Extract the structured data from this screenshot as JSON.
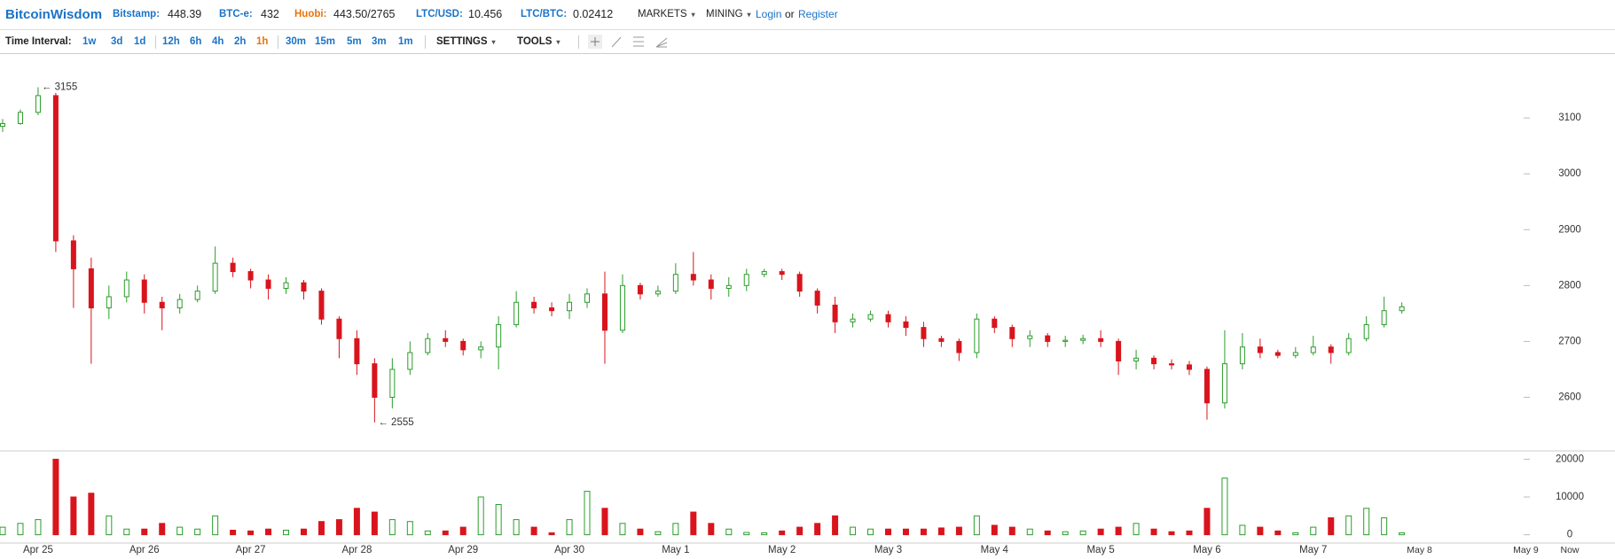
{
  "header": {
    "brand": "BitcoinWisdom",
    "tickers": [
      {
        "name": "Bitstamp:",
        "price": 448.39,
        "color": "#1a73c9"
      },
      {
        "name": "BTC-e:",
        "price": 432,
        "color": "#1a73c9"
      },
      {
        "name": "Huobi:",
        "price": "443.50/2765",
        "color": "#e8730c"
      },
      {
        "name": "LTC/USD:",
        "price": 10.456,
        "color": "#1a73c9"
      },
      {
        "name": "LTC/BTC:",
        "price": 0.02412,
        "color": "#1a73c9"
      }
    ],
    "menus": [
      "MARKETS",
      "MINING"
    ],
    "login": "Login",
    "or": "or",
    "register": "Register"
  },
  "toolbar": {
    "label": "Time Interval:",
    "intervals": [
      {
        "label": "1w",
        "color": "#1a73c9"
      },
      {
        "label": "3d",
        "color": "#1a73c9"
      },
      {
        "label": "1d",
        "color": "#1a73c9"
      },
      {
        "label": "12h",
        "color": "#1a73c9"
      },
      {
        "label": "6h",
        "color": "#1a73c9"
      },
      {
        "label": "4h",
        "color": "#1a73c9"
      },
      {
        "label": "2h",
        "color": "#1a73c9"
      },
      {
        "label": "1h",
        "color": "#e8730c"
      },
      {
        "label": "30m",
        "color": "#1a73c9"
      },
      {
        "label": "15m",
        "color": "#1a73c9"
      },
      {
        "label": "5m",
        "color": "#1a73c9"
      },
      {
        "label": "3m",
        "color": "#1a73c9"
      },
      {
        "label": "1m",
        "color": "#1a73c9"
      }
    ],
    "menus": [
      "SETTINGS",
      "TOOLS"
    ]
  },
  "chart_data": {
    "type": "candlestick",
    "categories": [
      null,
      null,
      "Apr 25",
      null,
      null,
      null,
      null,
      null,
      "Apr 26",
      null,
      null,
      null,
      null,
      null,
      "Apr 27",
      null,
      null,
      null,
      null,
      null,
      "Apr 28",
      null,
      null,
      null,
      null,
      null,
      "Apr 29",
      null,
      null,
      null,
      null,
      null,
      "Apr 30",
      null,
      null,
      null,
      null,
      null,
      "May 1",
      null,
      null,
      null,
      null,
      null,
      "May 2",
      null,
      null,
      null,
      null,
      null,
      "May 3",
      null,
      null,
      null,
      null,
      null,
      "May 4",
      null,
      null,
      null,
      null,
      null,
      "May 5",
      null,
      null,
      null,
      null,
      null,
      "May 6",
      null,
      null,
      null,
      null,
      null,
      "May 7",
      null,
      null,
      null,
      null,
      null
    ],
    "x_extra_labels": [
      "May 8",
      "May 9",
      "Now"
    ],
    "open": [
      3085,
      3090,
      3110,
      3140,
      2880,
      2830,
      2760,
      2780,
      2810,
      2770,
      2760,
      2775,
      2790,
      2840,
      2825,
      2810,
      2795,
      2805,
      2790,
      2740,
      2705,
      2660,
      2600,
      2650,
      2680,
      2705,
      2700,
      2685,
      2690,
      2730,
      2770,
      2760,
      2755,
      2770,
      2785,
      2720,
      2800,
      2785,
      2790,
      2820,
      2810,
      2795,
      2800,
      2820,
      2825,
      2820,
      2790,
      2765,
      2735,
      2740,
      2748,
      2735,
      2725,
      2705,
      2700,
      2680,
      2740,
      2725,
      2705,
      2710,
      2700,
      2702,
      2705,
      2700,
      2665,
      2670,
      2660,
      2658,
      2650,
      2590,
      2660,
      2690,
      2680,
      2675,
      2680,
      2690,
      2680,
      2705,
      2730,
      2755
    ],
    "high": [
      3098,
      3115,
      3155,
      3145,
      2890,
      2850,
      2800,
      2825,
      2820,
      2780,
      2785,
      2800,
      2870,
      2850,
      2830,
      2820,
      2815,
      2810,
      2795,
      2745,
      2720,
      2670,
      2670,
      2700,
      2715,
      2720,
      2705,
      2700,
      2745,
      2790,
      2780,
      2770,
      2785,
      2795,
      2825,
      2820,
      2805,
      2800,
      2840,
      2860,
      2820,
      2815,
      2830,
      2830,
      2830,
      2825,
      2795,
      2780,
      2750,
      2755,
      2755,
      2745,
      2735,
      2710,
      2705,
      2750,
      2745,
      2730,
      2720,
      2715,
      2710,
      2712,
      2720,
      2705,
      2685,
      2675,
      2668,
      2665,
      2655,
      2720,
      2715,
      2705,
      2685,
      2690,
      2710,
      2695,
      2715,
      2745,
      2780,
      2770
    ],
    "low": [
      3075,
      3088,
      3105,
      2860,
      2760,
      2660,
      2740,
      2770,
      2750,
      2720,
      2750,
      2770,
      2785,
      2815,
      2795,
      2775,
      2785,
      2775,
      2730,
      2670,
      2640,
      2555,
      2580,
      2640,
      2675,
      2690,
      2675,
      2670,
      2650,
      2725,
      2750,
      2745,
      2740,
      2760,
      2660,
      2715,
      2775,
      2780,
      2785,
      2800,
      2775,
      2780,
      2790,
      2815,
      2810,
      2780,
      2750,
      2715,
      2725,
      2735,
      2725,
      2710,
      2690,
      2690,
      2665,
      2670,
      2715,
      2690,
      2690,
      2690,
      2690,
      2695,
      2690,
      2640,
      2650,
      2650,
      2650,
      2640,
      2560,
      2580,
      2650,
      2670,
      2670,
      2670,
      2675,
      2660,
      2675,
      2700,
      2725,
      2750
    ],
    "close": [
      3090,
      3110,
      3140,
      2880,
      2830,
      2760,
      2780,
      2810,
      2770,
      2760,
      2775,
      2790,
      2840,
      2825,
      2810,
      2795,
      2805,
      2790,
      2740,
      2705,
      2660,
      2600,
      2650,
      2680,
      2705,
      2700,
      2685,
      2690,
      2730,
      2770,
      2760,
      2755,
      2770,
      2785,
      2720,
      2800,
      2785,
      2790,
      2820,
      2810,
      2795,
      2800,
      2820,
      2825,
      2820,
      2790,
      2765,
      2735,
      2740,
      2748,
      2735,
      2725,
      2705,
      2700,
      2680,
      2740,
      2725,
      2705,
      2710,
      2700,
      2702,
      2705,
      2700,
      2665,
      2670,
      2660,
      2658,
      2650,
      2590,
      2660,
      2690,
      2680,
      2675,
      2680,
      2690,
      2680,
      2705,
      2730,
      2755,
      2762
    ],
    "volume": [
      2000,
      3000,
      4000,
      20000,
      10000,
      11000,
      5000,
      1500,
      1500,
      3000,
      2000,
      1500,
      5000,
      1200,
      1000,
      1500,
      1200,
      1500,
      3500,
      4000,
      7000,
      6000,
      4000,
      3500,
      1000,
      1000,
      2000,
      10000,
      8000,
      4000,
      2000,
      500,
      4000,
      11500,
      7000,
      3000,
      1500,
      800,
      3000,
      6000,
      3000,
      1500,
      600,
      500,
      1000,
      2000,
      3000,
      5000,
      2000,
      1500,
      1500,
      1500,
      1500,
      1800,
      2000,
      5000,
      2500,
      2000,
      1500,
      1000,
      800,
      1000,
      1500,
      2000,
      3000,
      1500,
      800,
      1000,
      7000,
      15000,
      2500,
      2000,
      1000,
      500,
      2000,
      4500,
      5000,
      7000,
      4500,
      500
    ],
    "ylim": [
      2504,
      3216
    ],
    "yticks": [
      2600,
      2700,
      2800,
      2900,
      3000,
      3100
    ],
    "volume_ylim": [
      -2200,
      22200
    ],
    "volume_yticks": [
      0,
      10000,
      20000
    ],
    "annotations": [
      "← 3155",
      "← 2555"
    ],
    "up_color": "#2a9d2a",
    "down_color": "#d9141c"
  }
}
